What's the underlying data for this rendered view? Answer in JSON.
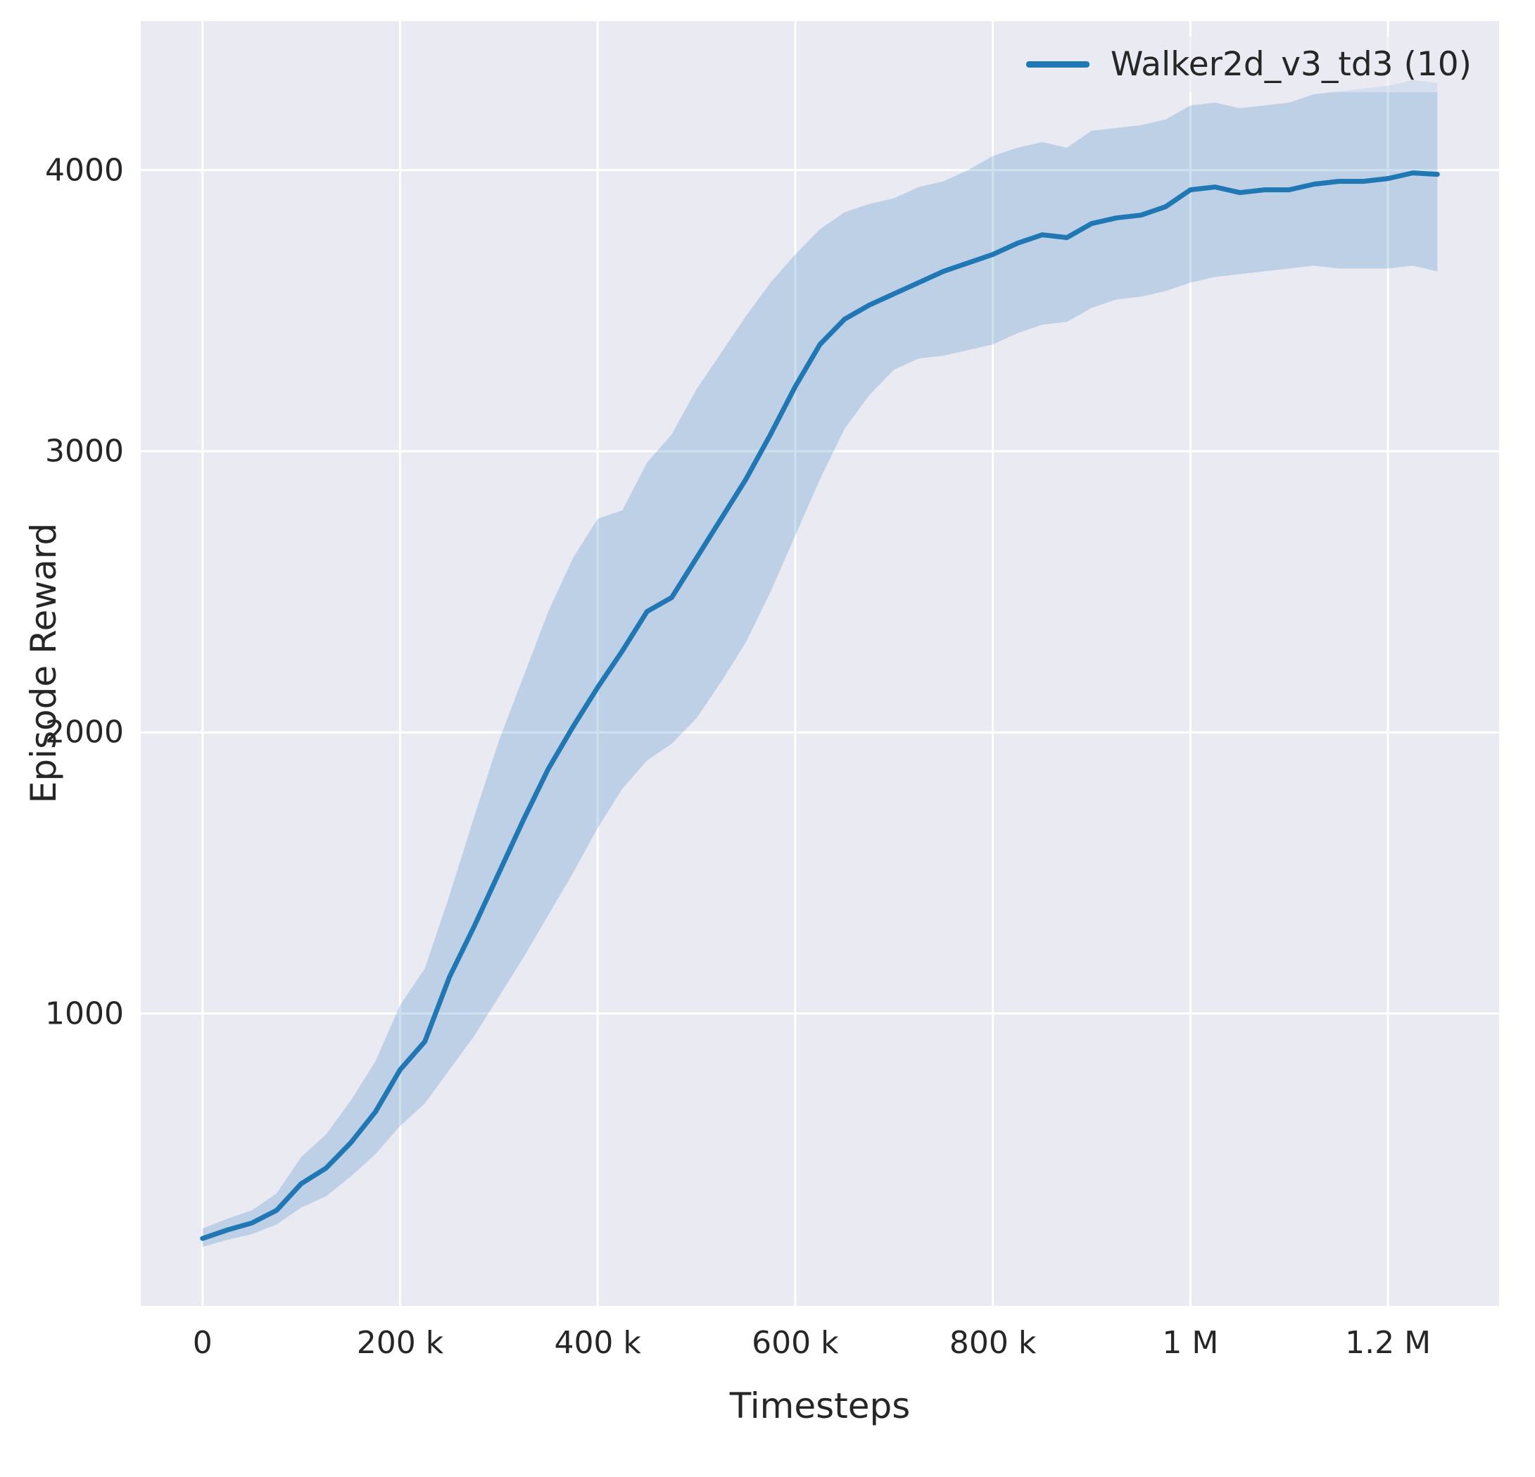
{
  "figure": {
    "background": "#ffffff",
    "plot_background": "#eaeaf2",
    "grid_color": "#ffffff",
    "text_color": "#262626"
  },
  "chart_data": {
    "type": "line",
    "title": "",
    "xlabel": "Timesteps",
    "ylabel": "Episode Reward",
    "xlim": [
      -62500,
      1312500
    ],
    "ylim": [
      -40,
      4530
    ],
    "grid": true,
    "x_ticks": [
      {
        "value": 0,
        "label": "0"
      },
      {
        "value": 200000,
        "label": "200 k"
      },
      {
        "value": 400000,
        "label": "400 k"
      },
      {
        "value": 600000,
        "label": "600 k"
      },
      {
        "value": 800000,
        "label": "800 k"
      },
      {
        "value": 1000000,
        "label": "1 M"
      },
      {
        "value": 1200000,
        "label": "1.2 M"
      }
    ],
    "y_ticks": [
      {
        "value": 1000,
        "label": "1000"
      },
      {
        "value": 2000,
        "label": "2000"
      },
      {
        "value": 3000,
        "label": "3000"
      },
      {
        "value": 4000,
        "label": "4000"
      }
    ],
    "legend": {
      "position": "upper right",
      "entries": [
        {
          "label": "Walker2d_v3_td3 (10)",
          "color": "#1f77b4"
        }
      ]
    },
    "series": [
      {
        "name": "Walker2d_v3_td3 (10)",
        "color": "#1f77b4",
        "band_opacity": 0.22,
        "x": [
          0,
          25000,
          50000,
          75000,
          100000,
          125000,
          150000,
          175000,
          200000,
          225000,
          250000,
          275000,
          300000,
          325000,
          350000,
          375000,
          400000,
          425000,
          450000,
          475000,
          500000,
          525000,
          550000,
          575000,
          600000,
          625000,
          650000,
          675000,
          700000,
          725000,
          750000,
          775000,
          800000,
          825000,
          850000,
          875000,
          900000,
          925000,
          950000,
          975000,
          1000000,
          1025000,
          1050000,
          1075000,
          1100000,
          1125000,
          1150000,
          1175000,
          1200000,
          1225000,
          1250000
        ],
        "mean": [
          200,
          230,
          255,
          300,
          395,
          450,
          540,
          650,
          800,
          900,
          1130,
          1310,
          1500,
          1690,
          1870,
          2020,
          2160,
          2290,
          2430,
          2480,
          2620,
          2760,
          2900,
          3060,
          3230,
          3380,
          3470,
          3520,
          3560,
          3600,
          3640,
          3670,
          3700,
          3740,
          3770,
          3760,
          3810,
          3830,
          3840,
          3870,
          3930,
          3940,
          3920,
          3930,
          3930,
          3950,
          3960,
          3960,
          3970,
          3990,
          3985
        ],
        "band_lower": [
          170,
          195,
          215,
          250,
          310,
          350,
          420,
          500,
          600,
          680,
          800,
          920,
          1060,
          1200,
          1350,
          1500,
          1660,
          1800,
          1900,
          1960,
          2050,
          2180,
          2320,
          2500,
          2700,
          2900,
          3080,
          3200,
          3290,
          3330,
          3340,
          3360,
          3380,
          3420,
          3450,
          3460,
          3510,
          3540,
          3550,
          3570,
          3600,
          3620,
          3630,
          3640,
          3650,
          3660,
          3650,
          3650,
          3650,
          3660,
          3640
        ],
        "band_upper": [
          235,
          270,
          300,
          360,
          490,
          570,
          690,
          830,
          1030,
          1160,
          1420,
          1700,
          1970,
          2200,
          2430,
          2620,
          2760,
          2790,
          2960,
          3060,
          3220,
          3350,
          3480,
          3600,
          3700,
          3790,
          3850,
          3880,
          3900,
          3940,
          3960,
          4000,
          4050,
          4080,
          4100,
          4080,
          4140,
          4150,
          4160,
          4180,
          4230,
          4240,
          4220,
          4230,
          4240,
          4270,
          4280,
          4290,
          4300,
          4320,
          4310
        ]
      }
    ]
  }
}
